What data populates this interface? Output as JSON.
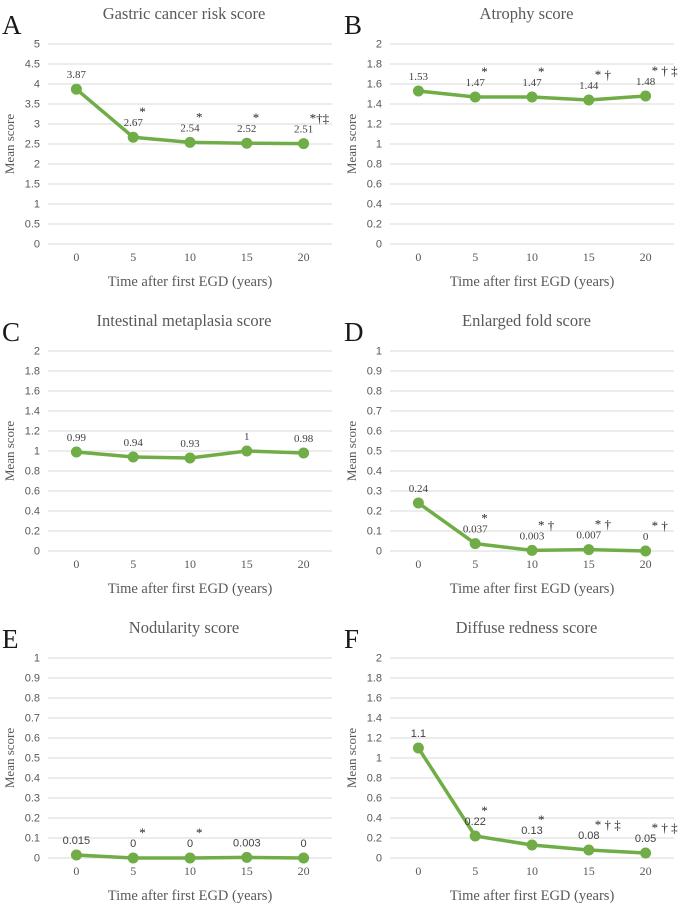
{
  "figure": {
    "background": "#ffffff",
    "x_axis_title": "Time after first EGD (years)",
    "y_axis_title": "Mean score"
  },
  "colors": {
    "line": "#70AD47",
    "marker": "#70AD47",
    "gridline": "#D9D9D9",
    "tick_label": "#595959",
    "axis_title": "#595959",
    "panel_title": "#595959",
    "data_label": "#404040",
    "significance_mark": "#262626",
    "panel_letter": "#1a1a1a"
  },
  "chart_data": [
    {
      "type": "line",
      "letter": "A",
      "title": "Gastric cancer risk score",
      "xlabel": "Time after first EGD (years)",
      "ylabel": "Mean score",
      "x": [
        0,
        5,
        10,
        15,
        20
      ],
      "values": [
        3.87,
        2.67,
        2.54,
        2.52,
        2.51
      ],
      "point_labels": [
        "3.87",
        "2.67",
        "2.54",
        "2.52",
        "2.51"
      ],
      "significance_marks": [
        "",
        "*",
        "*",
        "*",
        "*†‡"
      ],
      "ylim": [
        0,
        5
      ],
      "ystep": 0.5,
      "grid": true,
      "legend": false,
      "label_font": "serif"
    },
    {
      "type": "line",
      "letter": "B",
      "title": "Atrophy score",
      "xlabel": "Time after first EGD (years)",
      "ylabel": "Mean score",
      "x": [
        0,
        5,
        10,
        15,
        20
      ],
      "values": [
        1.53,
        1.47,
        1.47,
        1.44,
        1.48
      ],
      "point_labels": [
        "1.53",
        "1.47",
        "1.47",
        "1.44",
        "1.48"
      ],
      "significance_marks": [
        "",
        "*",
        "*",
        "* †",
        "* † ‡"
      ],
      "ylim": [
        0,
        2
      ],
      "ystep": 0.2,
      "grid": true,
      "legend": false,
      "label_font": "serif"
    },
    {
      "type": "line",
      "letter": "C",
      "title": "Intestinal metaplasia score",
      "xlabel": "Time after first EGD (years)",
      "ylabel": "Mean score",
      "x": [
        0,
        5,
        10,
        15,
        20
      ],
      "values": [
        0.99,
        0.94,
        0.93,
        1,
        0.98
      ],
      "point_labels": [
        "0.99",
        "0.94",
        "0.93",
        "1",
        "0.98"
      ],
      "significance_marks": [
        "",
        "",
        "",
        "",
        ""
      ],
      "ylim": [
        0,
        2
      ],
      "ystep": 0.2,
      "grid": true,
      "legend": false,
      "label_font": "serif"
    },
    {
      "type": "line",
      "letter": "D",
      "title": "Enlarged fold score",
      "xlabel": "Time after first EGD (years)",
      "ylabel": "Mean score",
      "x": [
        0,
        5,
        10,
        15,
        20
      ],
      "values": [
        0.24,
        0.037,
        0.003,
        0.007,
        0
      ],
      "point_labels": [
        "0.24",
        "0.037",
        "0.003",
        "0.007",
        "0"
      ],
      "significance_marks": [
        "",
        "*",
        "* †",
        "* †",
        "* †"
      ],
      "ylim": [
        0,
        1
      ],
      "ystep": 0.1,
      "grid": true,
      "legend": false,
      "label_font": "serif"
    },
    {
      "type": "line",
      "letter": "E",
      "title": "Nodularity score",
      "xlabel": "Time after first EGD (years)",
      "ylabel": "Mean score",
      "x": [
        0,
        5,
        10,
        15,
        20
      ],
      "values": [
        0.015,
        0,
        0,
        0.003,
        0
      ],
      "point_labels": [
        "0.015",
        "0",
        "0",
        "0.003",
        "0"
      ],
      "significance_marks": [
        "",
        "*",
        "*",
        "",
        ""
      ],
      "ylim": [
        0,
        1
      ],
      "ystep": 0.1,
      "grid": true,
      "legend": false,
      "label_font": "sans"
    },
    {
      "type": "line",
      "letter": "F",
      "title": "Diffuse redness score",
      "xlabel": "Time after first EGD (years)",
      "ylabel": "Mean score",
      "x": [
        0,
        5,
        10,
        15,
        20
      ],
      "values": [
        1.1,
        0.22,
        0.13,
        0.08,
        0.05
      ],
      "point_labels": [
        "1.1",
        "0.22",
        "0.13",
        "0.08",
        "0.05"
      ],
      "significance_marks": [
        "",
        "*",
        "*",
        "* † ‡",
        "* † ‡"
      ],
      "ylim": [
        0,
        2
      ],
      "ystep": 0.2,
      "grid": true,
      "legend": false,
      "label_font": "sans"
    }
  ]
}
